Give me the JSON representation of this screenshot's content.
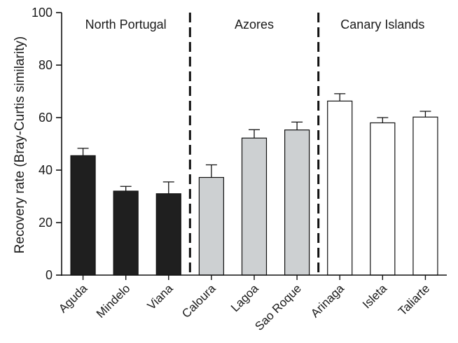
{
  "chart_data": {
    "type": "bar",
    "title": "",
    "xlabel": "",
    "ylabel": "Recovery rate (Bray-Curtis similarity)",
    "ylim": [
      0,
      100
    ],
    "yticks": [
      0,
      20,
      40,
      60,
      80,
      100
    ],
    "grid": false,
    "categories": [
      "Aguda",
      "Mindelo",
      "Viana",
      "Caloura",
      "Lagoa",
      "Sao Roque",
      "Arinaga",
      "Isleta",
      "Taliarte"
    ],
    "values": [
      45.5,
      32,
      31,
      37.2,
      52.2,
      55.3,
      66.3,
      58,
      60.2
    ],
    "errors": [
      2.8,
      1.8,
      4.5,
      4.8,
      3.2,
      3.0,
      2.8,
      2.0,
      2.2
    ],
    "groups": [
      {
        "name": "North Portugal",
        "categories": [
          "Aguda",
          "Mindelo",
          "Viana"
        ],
        "color": "#1f1f1f"
      },
      {
        "name": "Azores",
        "categories": [
          "Caloura",
          "Lagoa",
          "Sao Roque"
        ],
        "color": "#cdd0d2"
      },
      {
        "name": "Canary Islands",
        "categories": [
          "Arinaga",
          "Isleta",
          "Taliarte"
        ],
        "color": "#ffffff"
      }
    ]
  }
}
